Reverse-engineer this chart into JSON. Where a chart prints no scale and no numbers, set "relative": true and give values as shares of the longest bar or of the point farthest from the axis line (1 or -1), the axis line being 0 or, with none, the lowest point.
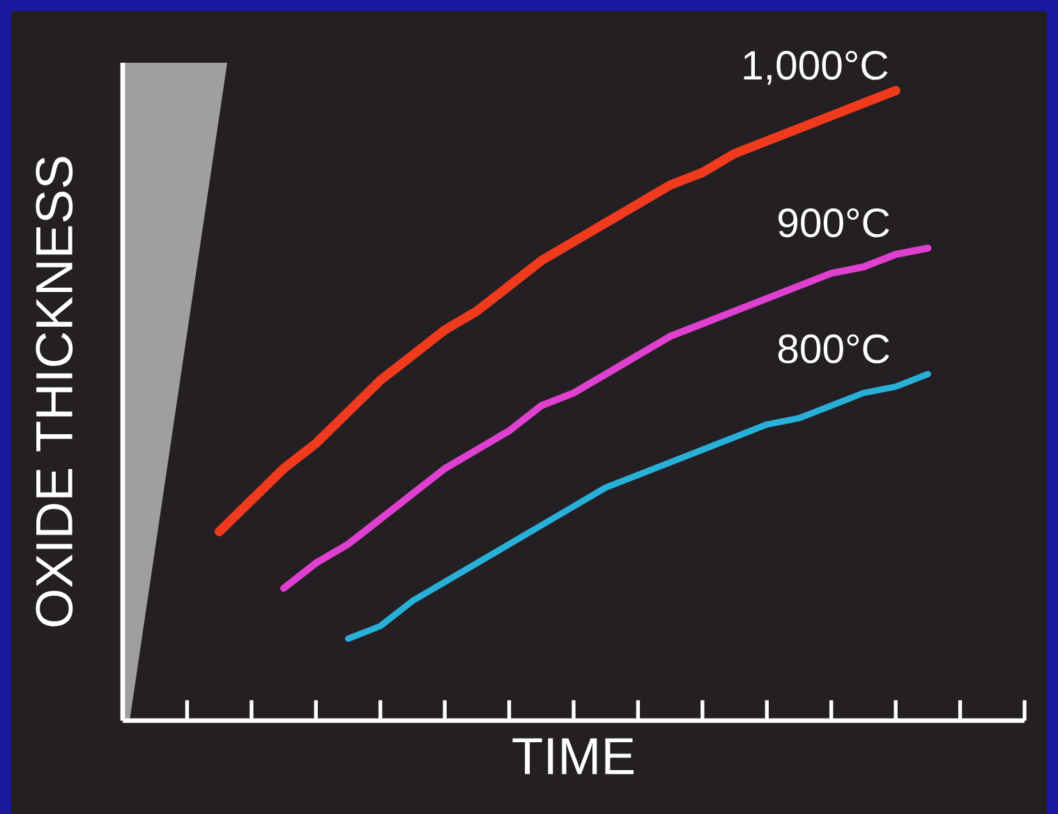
{
  "chart_data": {
    "type": "line",
    "relative": true,
    "xlabel": "TIME",
    "ylabel": "OXIDE THICKNESS",
    "categories": [
      null,
      null,
      null,
      null,
      null,
      null,
      null,
      null,
      null,
      null,
      null,
      null,
      null,
      null,
      null,
      null,
      null,
      null,
      null,
      null,
      null,
      null,
      null,
      null,
      null,
      null,
      null,
      null,
      null
    ],
    "series": [
      {
        "name": "1,000°C",
        "color": "#f03a1e",
        "values": [
          null,
          null,
          null,
          0.3,
          0.35,
          0.4,
          0.44,
          0.49,
          0.54,
          0.58,
          0.62,
          0.65,
          0.69,
          0.73,
          0.76,
          0.79,
          0.82,
          0.85,
          0.87,
          0.9,
          0.92,
          0.94,
          0.96,
          0.98,
          1,
          null,
          null,
          null,
          null
        ]
      },
      {
        "name": "900°C",
        "color": "#e040d0",
        "values": [
          null,
          null,
          null,
          null,
          null,
          0.21,
          0.25,
          0.28,
          0.32,
          0.36,
          0.4,
          0.43,
          0.46,
          0.5,
          0.52,
          0.55,
          0.58,
          0.61,
          0.63,
          0.65,
          0.67,
          0.69,
          0.71,
          0.72,
          0.74,
          0.75,
          null,
          null,
          null
        ]
      },
      {
        "name": "800°C",
        "color": "#28b0d8",
        "values": [
          null,
          null,
          null,
          null,
          null,
          null,
          null,
          0.13,
          0.15,
          0.19,
          0.22,
          0.25,
          0.28,
          0.31,
          0.34,
          0.37,
          0.39,
          0.41,
          0.43,
          0.45,
          0.47,
          0.48,
          0.5,
          0.52,
          0.53,
          0.55,
          null,
          null,
          null
        ]
      }
    ]
  }
}
